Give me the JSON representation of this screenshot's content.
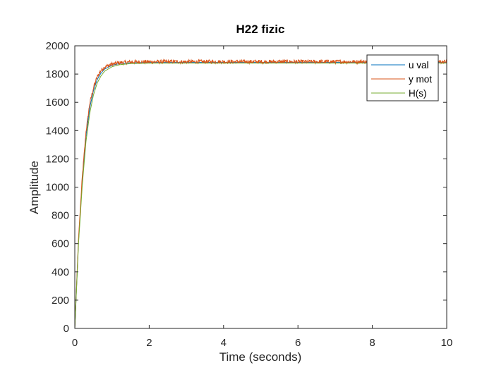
{
  "chart_data": {
    "type": "line",
    "title": "H22 fizic",
    "xlabel": "Time (seconds)",
    "ylabel": "Amplitude",
    "xlim": [
      0,
      10
    ],
    "ylim": [
      0,
      2000
    ],
    "xticks": [
      0,
      2,
      4,
      6,
      8,
      10
    ],
    "yticks": [
      0,
      200,
      400,
      600,
      800,
      1000,
      1200,
      1400,
      1600,
      1800,
      2000
    ],
    "grid": false,
    "legend_position": "top-right",
    "series": [
      {
        "name": "u val",
        "color": "#0072BD",
        "x": [
          0,
          0.1,
          0.2,
          0.3,
          0.4,
          0.5,
          0.6,
          0.7,
          0.8,
          1.0,
          1.2,
          1.5,
          2,
          4,
          6,
          8,
          10
        ],
        "values": [
          0,
          620,
          1040,
          1360,
          1560,
          1680,
          1760,
          1805,
          1835,
          1862,
          1874,
          1880,
          1882,
          1882,
          1882,
          1882,
          1882
        ]
      },
      {
        "name": "y mot",
        "color": "#D95319",
        "x": [
          0,
          0.1,
          0.2,
          0.3,
          0.4,
          0.5,
          0.6,
          0.7,
          0.8,
          1.0,
          1.2,
          1.5,
          2,
          4,
          6,
          8,
          10
        ],
        "values": [
          0,
          640,
          1070,
          1390,
          1590,
          1700,
          1780,
          1825,
          1850,
          1870,
          1880,
          1885,
          1887,
          1887,
          1887,
          1887,
          1887
        ],
        "noise_amplitude": 14
      },
      {
        "name": "H(s)",
        "color": "#77AC30",
        "x": [
          0,
          0.1,
          0.2,
          0.3,
          0.4,
          0.5,
          0.6,
          0.7,
          0.8,
          1.0,
          1.2,
          1.5,
          2,
          4,
          6,
          8,
          10
        ],
        "values": [
          0,
          600,
          1010,
          1320,
          1520,
          1650,
          1735,
          1785,
          1820,
          1852,
          1866,
          1874,
          1877,
          1878,
          1878,
          1878,
          1878
        ]
      }
    ]
  }
}
